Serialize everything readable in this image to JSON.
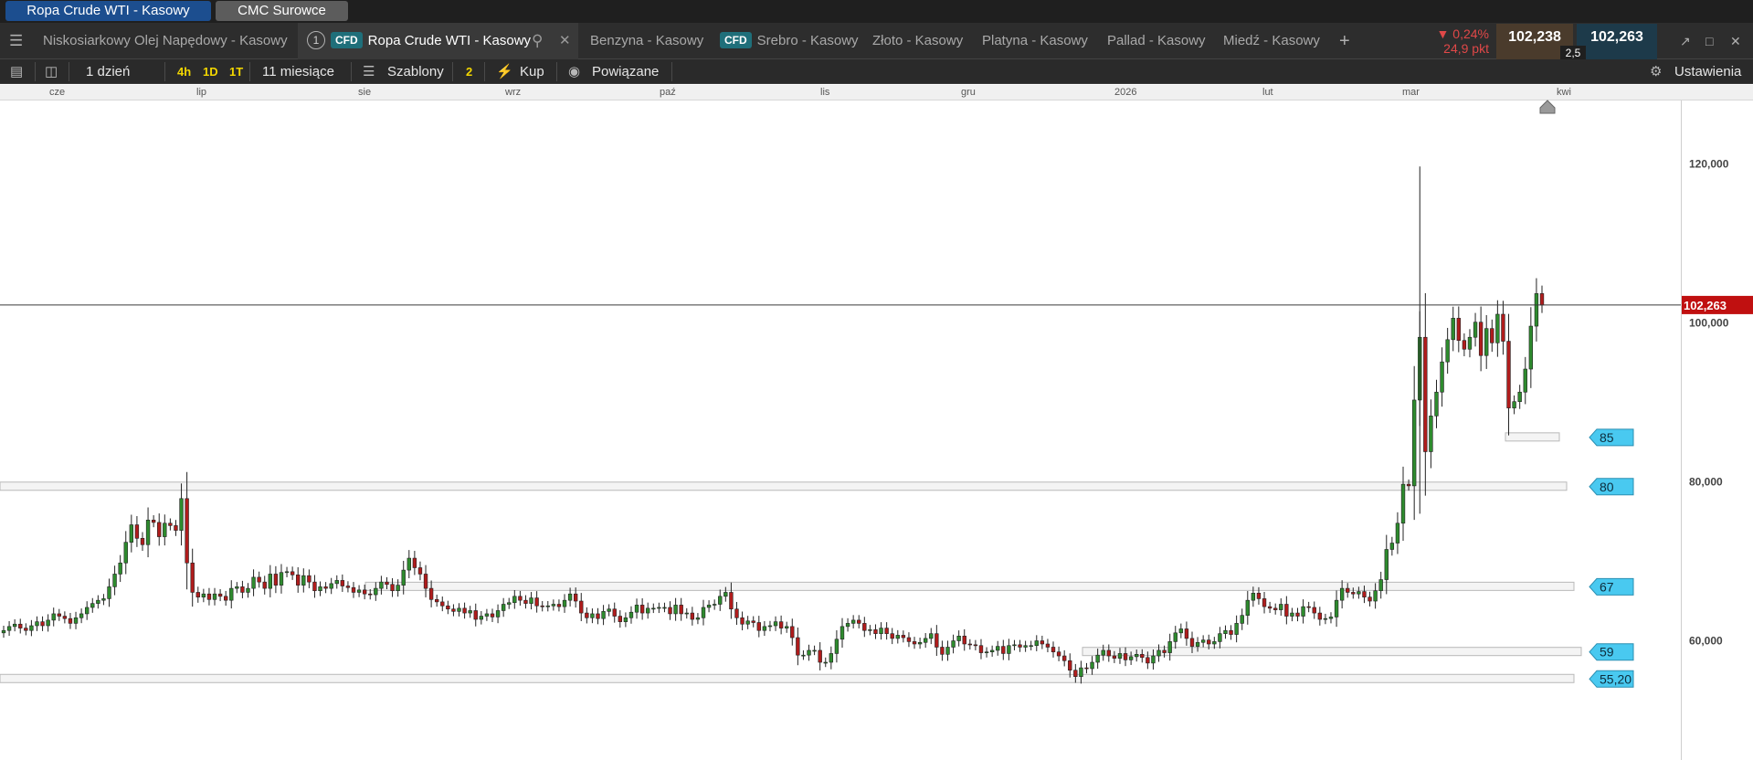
{
  "window_tabs": [
    "Ropa Crude WTI - Kasowy",
    "CMC Surowce"
  ],
  "instrument_tabs": [
    {
      "label": "Niskosiarkowy Olej Napędowy - Kasowy"
    },
    {
      "label": "Ropa Crude WTI - Kasowy",
      "badge": "CFD",
      "number": "1",
      "active": true
    },
    {
      "label": "Benzyna - Kasowy"
    },
    {
      "label": "Srebro - Kasowy",
      "badge": "CFD"
    },
    {
      "label": "Złoto - Kasowy"
    },
    {
      "label": "Platyna - Kasowy"
    },
    {
      "label": "Pallad - Kasowy"
    },
    {
      "label": "Miedź - Kasowy"
    }
  ],
  "quote": {
    "change_pct": "▼ 0,24%",
    "change_pts": "24,9 pkt",
    "bid": "102,238",
    "ask": "102,263",
    "spread": "2,5",
    "down_color": "#e04848"
  },
  "toolbar": {
    "interval": "1 dzień",
    "quick": [
      "4h",
      "1D",
      "1T"
    ],
    "range": "11 miesiące",
    "templates": "Szablony",
    "templates_count": "2",
    "buy": "Kup",
    "linked": "Powiązane",
    "settings": "Ustawienia"
  },
  "chart_data": {
    "type": "candlestick",
    "x_ticks": [
      "cze",
      "lip",
      "sie",
      "wrz",
      "paź",
      "lis",
      "gru",
      "2026",
      "lut",
      "mar",
      "kwi"
    ],
    "y_ticks": [
      "120,000",
      "100,000",
      "80,000",
      "60,000"
    ],
    "ylim": [
      45,
      128
    ],
    "current_price": "102,263",
    "current_value": 102.26,
    "up_color": "#2e8b2e",
    "down_color": "#b01c1c",
    "levels": [
      {
        "label": "85",
        "value": 85.6
      },
      {
        "label": "80",
        "value": 79.4
      },
      {
        "label": "67",
        "value": 66.8
      },
      {
        "label": "59",
        "value": 58.6
      },
      {
        "label": "55,20",
        "value": 55.2
      }
    ],
    "close_series": [
      61.3,
      61.8,
      62.1,
      61.6,
      61.3,
      61.9,
      62.4,
      61.9,
      62.6,
      63.4,
      63.1,
      62.8,
      62.2,
      62.9,
      63.4,
      64.2,
      64.7,
      65.1,
      65.3,
      66.8,
      68.4,
      69.8,
      72.4,
      74.6,
      72.9,
      72.1,
      75.2,
      74.9,
      73.1,
      74.8,
      74.5,
      73.9,
      77.9,
      69.8,
      66.1,
      65.5,
      65.9,
      65.2,
      65.9,
      65.6,
      65.1,
      66.6,
      66.8,
      66.1,
      66.6,
      68.0,
      67.4,
      66.6,
      68.4,
      67.0,
      68.6,
      68.7,
      68.3,
      67.0,
      68.2,
      67.4,
      66.3,
      66.8,
      66.6,
      67.2,
      67.6,
      66.9,
      66.7,
      66.1,
      66.4,
      65.9,
      65.8,
      66.6,
      67.4,
      67.1,
      66.3,
      67.0,
      68.9,
      70.4,
      69.2,
      68.4,
      66.6,
      65.2,
      64.9,
      64.4,
      64.0,
      63.7,
      64.1,
      63.5,
      63.8,
      62.7,
      63.1,
      63.4,
      63.0,
      63.8,
      64.6,
      64.8,
      65.6,
      65.1,
      64.7,
      65.4,
      64.4,
      64.3,
      64.4,
      64.6,
      64.3,
      65.1,
      65.9,
      65.0,
      63.5,
      62.9,
      63.4,
      62.8,
      63.7,
      64.0,
      63.1,
      62.4,
      62.9,
      63.6,
      64.5,
      63.5,
      64.1,
      64.1,
      64.2,
      64.2,
      63.4,
      64.5,
      63.4,
      63.5,
      62.7,
      62.9,
      64.2,
      64.5,
      64.6,
      65.6,
      66.1,
      64.0,
      62.9,
      62.1,
      62.5,
      62.3,
      61.3,
      61.8,
      61.9,
      62.4,
      61.6,
      61.8,
      60.4,
      58.2,
      58.2,
      58.8,
      58.8,
      57.3,
      57.3,
      58.4,
      60.2,
      61.8,
      62.2,
      62.6,
      62.2,
      61.3,
      61.4,
      60.9,
      61.6,
      60.9,
      60.3,
      60.7,
      60.4,
      59.9,
      59.6,
      59.8,
      60.3,
      60.9,
      59.2,
      58.3,
      59.2,
      60.0,
      60.6,
      59.6,
      59.5,
      59.4,
      58.5,
      58.6,
      58.8,
      59.3,
      58.4,
      59.4,
      59.5,
      59.2,
      59.4,
      59.4,
      60.0,
      59.6,
      59.2,
      58.6,
      58.1,
      57.5,
      56.3,
      55.5,
      56.6,
      56.5,
      57.3,
      58.2,
      58.8,
      58.1,
      57.8,
      58.4,
      57.6,
      58.0,
      58.3,
      57.9,
      57.2,
      58.1,
      58.8,
      58.5,
      59.9,
      61.0,
      61.5,
      60.3,
      59.3,
      59.8,
      60.1,
      59.6,
      59.9,
      60.9,
      61.3,
      60.8,
      62.2,
      63.2,
      65.1,
      66.0,
      65.3,
      64.3,
      64.1,
      63.9,
      64.6,
      63.1,
      63.5,
      63.1,
      64.3,
      64.2,
      63.5,
      62.7,
      62.8,
      63.0,
      65.1,
      66.6,
      66.1,
      65.9,
      66.2,
      65.5,
      65.0,
      66.3,
      67.7,
      71.5,
      72.3,
      74.8,
      79.7,
      79.5,
      90.3,
      98.2,
      83.8,
      88.3,
      91.3,
      95.1,
      97.9,
      100.6,
      97.8,
      96.7,
      98.2,
      100.1,
      95.9,
      99.3,
      97.5,
      101.1,
      97.7,
      89.3,
      90.1,
      91.3,
      94.2,
      99.6,
      103.7,
      102.26
    ]
  }
}
